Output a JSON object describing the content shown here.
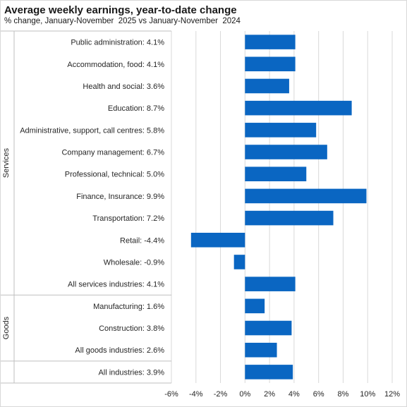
{
  "chart_data": {
    "type": "bar",
    "orientation": "horizontal",
    "title": "Average weekly earnings, year-to-date change",
    "subtitle": "% change, January-November  2025 vs January-November  2024",
    "color": "#0a66c2",
    "xlim": [
      -6,
      12
    ],
    "xticks": [
      "-6%",
      "-4%",
      "-2%",
      "0%",
      "2%",
      "4%",
      "6%",
      "8%",
      "10%",
      "12%"
    ],
    "tick_values": [
      -6,
      -4,
      -2,
      0,
      2,
      4,
      6,
      8,
      10,
      12
    ],
    "grid": "vertical",
    "groups": [
      {
        "name": "Services",
        "categories": [
          {
            "label": "Public administration:  4.1%",
            "value": 4.1
          },
          {
            "label": "Accommodation, food:  4.1%",
            "value": 4.1
          },
          {
            "label": "Health and social:  3.6%",
            "value": 3.6
          },
          {
            "label": "Education:  8.7%",
            "value": 8.7
          },
          {
            "label": "Administrative, support, call centres:  5.8%",
            "value": 5.8
          },
          {
            "label": "Company management:  6.7%",
            "value": 6.7
          },
          {
            "label": "Professional, technical:  5.0%",
            "value": 5.0
          },
          {
            "label": "Finance, Insurance:  9.9%",
            "value": 9.9
          },
          {
            "label": "Transportation:  7.2%",
            "value": 7.2
          },
          {
            "label": "Retail:  -4.4%",
            "value": -4.4
          },
          {
            "label": "Wholesale:  -0.9%",
            "value": -0.9
          },
          {
            "label": "All services industries:  4.1%",
            "value": 4.1
          }
        ]
      },
      {
        "name": "Goods",
        "categories": [
          {
            "label": "Manufacturing:  1.6%",
            "value": 1.6
          },
          {
            "label": "Construction:  3.8%",
            "value": 3.8
          },
          {
            "label": "All goods industries:  2.6%",
            "value": 2.6
          }
        ]
      },
      {
        "name": "",
        "categories": [
          {
            "label": "All industries:  3.9%",
            "value": 3.9
          }
        ]
      }
    ]
  }
}
